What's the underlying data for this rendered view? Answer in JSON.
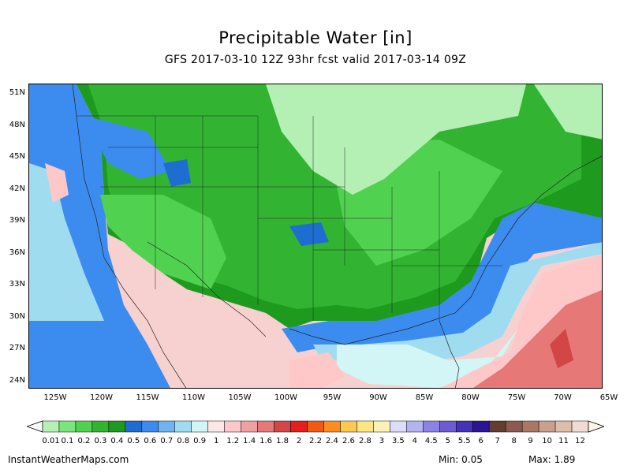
{
  "title": "Precipitable Water [in]",
  "subtitle": "GFS 2017-03-10 12Z 93hr fcst valid 2017-03-14 09Z",
  "lat_labels": [
    "51N",
    "48N",
    "45N",
    "42N",
    "39N",
    "36N",
    "33N",
    "30N",
    "27N",
    "24N"
  ],
  "lon_labels": [
    "125W",
    "120W",
    "115W",
    "110W",
    "105W",
    "100W",
    "95W",
    "90W",
    "85W",
    "80W",
    "75W",
    "70W",
    "65W"
  ],
  "colorbar": {
    "labels": [
      "0.01",
      "0.1",
      "0.2",
      "0.3",
      "0.4",
      "0.5",
      "0.6",
      "0.7",
      "0.8",
      "0.9",
      "1",
      "1.2",
      "1.4",
      "1.6",
      "1.8",
      "2",
      "2.2",
      "2.4",
      "2.6",
      "2.8",
      "3",
      "3.5",
      "4",
      "4.5",
      "5",
      "5.5",
      "6",
      "7",
      "8",
      "9",
      "10",
      "11",
      "12"
    ],
    "colors": [
      "#b4f0b4",
      "#78e678",
      "#50d250",
      "#32b432",
      "#1e9b1e",
      "#1e6ed2",
      "#3c8cf0",
      "#6eb4f0",
      "#a0dcf0",
      "#d2f5f5",
      "#ffe6e6",
      "#ffc8c8",
      "#f0a0a0",
      "#e67878",
      "#d24646",
      "#e61e1e",
      "#f05a14",
      "#ff8c1e",
      "#ffc850",
      "#ffe682",
      "#fff0b4",
      "#dcdcff",
      "#b4b4f0",
      "#8c82e6",
      "#6e5ad2",
      "#4632b4",
      "#2d1496",
      "#643c32",
      "#8c5a50",
      "#aa7864",
      "#c8a08c",
      "#dcbeaa",
      "#f0dcd2"
    ],
    "end_left": "#f8f8f8",
    "end_right": "#fff5e8"
  },
  "footer": {
    "site": "InstantWeatherMaps.com",
    "min": "Min:  0.05",
    "max": "Max:  1.89"
  },
  "palette": {
    "light_green": "#b4f0b4",
    "mid_green": "#50d250",
    "green": "#32b432",
    "dark_green": "#1e9b1e",
    "blue": "#1e6ed2",
    "light_blue": "#6eb4f0",
    "cyan": "#d2f5f5",
    "pale_pink": "#ffe6e6",
    "pink": "#f0a0a0",
    "red": "#e67878",
    "dark_red": "#d24646"
  }
}
